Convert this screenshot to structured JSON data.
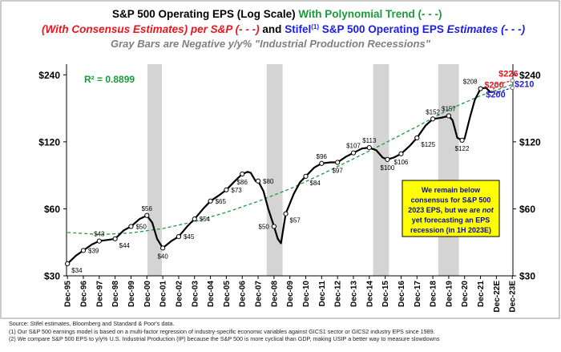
{
  "chart_data": {
    "type": "line",
    "title": {
      "line1_black": "S&P 500 Operating EPS (Log Scale)",
      "line1_green": "With Polynomial Trend (- - -)",
      "line2_red": "(With Consensus Estimates) per S&P (- - -)",
      "line2_and": "and",
      "line2_stifel": "Stifel",
      "line2_sup": "(1)",
      "line2_blue_a": "S&P 500 Operating EPS",
      "line2_blue_b": "Estimates",
      "line2_blue_c": "(- - -)",
      "line3_gray": "Gray Bars are Negative y/y% \"Industrial Production Recessions\""
    },
    "y_scale": "log",
    "ylim": [
      30,
      268
    ],
    "y_ticks": [
      {
        "value": 30,
        "label": "$30"
      },
      {
        "value": 60,
        "label": "$60"
      },
      {
        "value": 120,
        "label": "$120"
      },
      {
        "value": 240,
        "label": "$240"
      }
    ],
    "xlim": [
      1995.9,
      2024.0
    ],
    "x_ticks": [
      {
        "t": 1995.96,
        "label": "Dec-95"
      },
      {
        "t": 1996.96,
        "label": "Dec-96"
      },
      {
        "t": 1997.96,
        "label": "Dec-97"
      },
      {
        "t": 1998.96,
        "label": "Dec-98"
      },
      {
        "t": 1999.96,
        "label": "Dec-99"
      },
      {
        "t": 2000.96,
        "label": "Dec-00"
      },
      {
        "t": 2001.96,
        "label": "Dec-01"
      },
      {
        "t": 2002.96,
        "label": "Dec-02"
      },
      {
        "t": 2003.96,
        "label": "Dec-03"
      },
      {
        "t": 2004.96,
        "label": "Dec-04"
      },
      {
        "t": 2005.96,
        "label": "Dec-05"
      },
      {
        "t": 2006.96,
        "label": "Dec-06"
      },
      {
        "t": 2007.96,
        "label": "Dec-07"
      },
      {
        "t": 2008.96,
        "label": "Dec-08"
      },
      {
        "t": 2009.96,
        "label": "Dec-09"
      },
      {
        "t": 2010.96,
        "label": "Dec-10"
      },
      {
        "t": 2011.96,
        "label": "Dec-11"
      },
      {
        "t": 2012.96,
        "label": "Dec-12"
      },
      {
        "t": 2013.96,
        "label": "Dec-13"
      },
      {
        "t": 2014.96,
        "label": "Dec-14"
      },
      {
        "t": 2015.96,
        "label": "Dec-15"
      },
      {
        "t": 2016.96,
        "label": "Dec-16"
      },
      {
        "t": 2017.96,
        "label": "Dec-17"
      },
      {
        "t": 2018.96,
        "label": "Dec-18"
      },
      {
        "t": 2019.96,
        "label": "Dec-19"
      },
      {
        "t": 2020.96,
        "label": "Dec-20"
      },
      {
        "t": 2021.96,
        "label": "Dec-21"
      },
      {
        "t": 2022.96,
        "label": "Dec-22E"
      },
      {
        "t": 2023.96,
        "label": "Dec-23E"
      }
    ],
    "recession_bars": [
      [
        2001.0,
        2001.9
      ],
      [
        2008.5,
        2009.5
      ],
      [
        2015.2,
        2016.2
      ],
      [
        2019.3,
        2020.6
      ]
    ],
    "r_squared_label": "R² = 0.8899",
    "actual_eps": [
      [
        1995.96,
        34
      ],
      [
        1996.5,
        37
      ],
      [
        1996.96,
        39
      ],
      [
        1997.5,
        41.5
      ],
      [
        1997.96,
        43
      ],
      [
        1998.5,
        43.5
      ],
      [
        1998.96,
        44
      ],
      [
        1999.5,
        48
      ],
      [
        1999.96,
        50
      ],
      [
        2000.5,
        54
      ],
      [
        2000.96,
        56
      ],
      [
        2001.3,
        52
      ],
      [
        2001.6,
        44
      ],
      [
        2001.96,
        40
      ],
      [
        2002.5,
        43
      ],
      [
        2002.96,
        45
      ],
      [
        2003.5,
        50
      ],
      [
        2003.96,
        54
      ],
      [
        2004.5,
        60
      ],
      [
        2004.96,
        65
      ],
      [
        2005.5,
        69
      ],
      [
        2005.96,
        73
      ],
      [
        2006.5,
        80
      ],
      [
        2006.96,
        86
      ],
      [
        2007.3,
        88
      ],
      [
        2007.5,
        87
      ],
      [
        2007.8,
        80
      ],
      [
        2007.96,
        80
      ],
      [
        2008.3,
        72
      ],
      [
        2008.6,
        60
      ],
      [
        2008.96,
        50
      ],
      [
        2009.2,
        44
      ],
      [
        2009.4,
        42
      ],
      [
        2009.7,
        57
      ],
      [
        2010.2,
        70
      ],
      [
        2010.6,
        79
      ],
      [
        2010.96,
        84
      ],
      [
        2011.5,
        92
      ],
      [
        2011.96,
        96
      ],
      [
        2012.5,
        97
      ],
      [
        2012.96,
        97
      ],
      [
        2013.5,
        103
      ],
      [
        2013.96,
        107
      ],
      [
        2014.5,
        112
      ],
      [
        2014.96,
        113
      ],
      [
        2015.4,
        110
      ],
      [
        2015.8,
        102
      ],
      [
        2016.1,
        100
      ],
      [
        2016.5,
        102
      ],
      [
        2016.96,
        106
      ],
      [
        2017.5,
        115
      ],
      [
        2017.96,
        125
      ],
      [
        2018.5,
        142
      ],
      [
        2018.96,
        152
      ],
      [
        2019.5,
        154
      ],
      [
        2019.96,
        157
      ],
      [
        2020.2,
        150
      ],
      [
        2020.5,
        125
      ],
      [
        2020.8,
        122
      ],
      [
        2020.96,
        124
      ],
      [
        2021.3,
        155
      ],
      [
        2021.6,
        185
      ],
      [
        2021.96,
        208
      ],
      [
        2022.3,
        210
      ],
      [
        2022.6,
        200
      ]
    ],
    "consensus_estimates": [
      [
        2022.6,
        200
      ],
      [
        2022.96,
        215
      ],
      [
        2023.5,
        222
      ],
      [
        2023.96,
        226
      ]
    ],
    "stifel_estimates": [
      [
        2022.6,
        200
      ],
      [
        2022.96,
        200
      ],
      [
        2023.5,
        205
      ],
      [
        2023.96,
        210
      ]
    ],
    "trend": [
      [
        1995.96,
        47
      ],
      [
        1998,
        46
      ],
      [
        2000,
        46.8
      ],
      [
        2002,
        49
      ],
      [
        2004,
        52.7
      ],
      [
        2006,
        58
      ],
      [
        2008,
        65
      ],
      [
        2010,
        74
      ],
      [
        2012,
        86
      ],
      [
        2014,
        101
      ],
      [
        2016,
        119
      ],
      [
        2018,
        141
      ],
      [
        2020,
        168
      ],
      [
        2022,
        194
      ],
      [
        2023.96,
        217
      ]
    ],
    "point_labels": [
      {
        "t": 1995.96,
        "v": 34,
        "text": "$34",
        "pos": "below-right"
      },
      {
        "t": 1996.96,
        "v": 39,
        "text": "$39",
        "pos": "right"
      },
      {
        "t": 1997.96,
        "v": 43,
        "text": "$43",
        "pos": "above"
      },
      {
        "t": 1998.96,
        "v": 44,
        "text": "$44",
        "pos": "below-right"
      },
      {
        "t": 1999.96,
        "v": 50,
        "text": "$50",
        "pos": "right"
      },
      {
        "t": 2000.96,
        "v": 56,
        "text": "$56",
        "pos": "above"
      },
      {
        "t": 2001.96,
        "v": 40,
        "text": "$40",
        "pos": "below"
      },
      {
        "t": 2002.96,
        "v": 45,
        "text": "$45",
        "pos": "right"
      },
      {
        "t": 2003.96,
        "v": 54,
        "text": "$54",
        "pos": "right"
      },
      {
        "t": 2004.96,
        "v": 65,
        "text": "$65",
        "pos": "right"
      },
      {
        "t": 2005.96,
        "v": 73,
        "text": "$73",
        "pos": "right"
      },
      {
        "t": 2006.96,
        "v": 86,
        "text": "$86",
        "pos": "below"
      },
      {
        "t": 2007.96,
        "v": 80,
        "text": "$80",
        "pos": "right"
      },
      {
        "t": 2008.96,
        "v": 50,
        "text": "$50",
        "pos": "left"
      },
      {
        "t": 2009.7,
        "v": 57,
        "text": "$57",
        "pos": "below-right"
      },
      {
        "t": 2010.96,
        "v": 84,
        "text": "$84",
        "pos": "below-right"
      },
      {
        "t": 2011.96,
        "v": 96,
        "text": "$96",
        "pos": "above"
      },
      {
        "t": 2012.96,
        "v": 97,
        "text": "$97",
        "pos": "below"
      },
      {
        "t": 2013.96,
        "v": 107,
        "text": "$107",
        "pos": "above"
      },
      {
        "t": 2014.96,
        "v": 113,
        "text": "$113",
        "pos": "above"
      },
      {
        "t": 2016.1,
        "v": 100,
        "text": "$100",
        "pos": "below"
      },
      {
        "t": 2016.96,
        "v": 106,
        "text": "$106",
        "pos": "below"
      },
      {
        "t": 2017.96,
        "v": 125,
        "text": "$125",
        "pos": "below-right"
      },
      {
        "t": 2018.96,
        "v": 152,
        "text": "$152",
        "pos": "above"
      },
      {
        "t": 2019.96,
        "v": 157,
        "text": "$157",
        "pos": "above"
      },
      {
        "t": 2020.8,
        "v": 122,
        "text": "$122",
        "pos": "below"
      },
      {
        "t": 2021.96,
        "v": 208,
        "text": "$208",
        "pos": "above-left"
      }
    ],
    "estimate_labels": [
      {
        "text": "$226",
        "color": "#e8161c"
      },
      {
        "text": "$200",
        "color": "#e8161c"
      },
      {
        "text": "$200",
        "color": "#1c1ce8"
      },
      {
        "text": "$210",
        "color": "#1c1ce8"
      }
    ],
    "annotation_box": [
      {
        "text": "We remain below"
      },
      {
        "text": "consensus for S&P 500"
      },
      {
        "text": "2023 EPS, but we are ",
        "em": "not"
      },
      {
        "text": "yet forecasting an EPS"
      },
      {
        "text": "recession (in 1H 2023E)"
      }
    ],
    "colors": {
      "actual": "#000000",
      "trend": "#1a9a3a",
      "consensus": "#e8161c",
      "stifel": "#1c1ce8",
      "recession_bar": "#d4d4d4",
      "annotation_fill": "#ffff00",
      "annotation_text": "#0a0a9a",
      "r2_text": "#1a9a3a",
      "gray_title": "#7f7f7f"
    }
  },
  "notes": {
    "source": "Source: Stifel estimates, Bloomberg and Standard & Poor's data.",
    "note1": "(1)   Our S&P 500 earnings model is based on a multi-factor regression of industry-specific economic variables against GICS1 sector or GICS2 industry EPS since 1989.",
    "note2": "(2)   We compare S&P 500 EPS to y/y% U.S. Industrial Production (IP) because the S&P 500 is more cyclical than GDP, making USIP a better way to measure slowdowns"
  }
}
